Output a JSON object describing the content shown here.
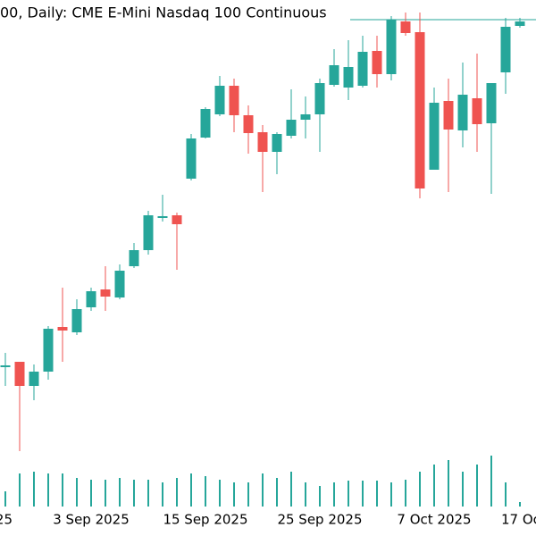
{
  "chart_data": {
    "type": "candlestick",
    "title": "00, Daily:  CME E-Mini Nasdaq 100 Continuous",
    "categories": [
      "25",
      null,
      null,
      null,
      null,
      null,
      "3 Sep 2025",
      null,
      null,
      null,
      null,
      null,
      null,
      null,
      "15 Sep 2025",
      null,
      null,
      null,
      null,
      null,
      null,
      null,
      "25 Sep 2025",
      null,
      null,
      null,
      null,
      null,
      null,
      null,
      "7 Oct 2025",
      null,
      null,
      null,
      null,
      "17 Oc",
      null
    ],
    "open": [
      23450,
      23475,
      23340,
      23420,
      23670,
      23640,
      23780,
      23880,
      23835,
      24010,
      24100,
      24285,
      24295,
      24500,
      24730,
      24860,
      25020,
      24855,
      24760,
      24650,
      24740,
      24830,
      24860,
      25025,
      25010,
      25020,
      25215,
      25085,
      25380,
      25320,
      24550,
      24935,
      24770,
      24950,
      24810,
      25095,
      25355
    ],
    "high": [
      23525,
      23475,
      23460,
      23675,
      23890,
      23825,
      23890,
      24010,
      24020,
      24140,
      24320,
      24410,
      24310,
      24750,
      24900,
      25075,
      25060,
      24910,
      24800,
      24760,
      25000,
      24960,
      25060,
      25225,
      25275,
      25300,
      25300,
      25410,
      25430,
      25430,
      25010,
      25060,
      25150,
      25200,
      25035,
      25400,
      25400
    ],
    "low": [
      23340,
      22975,
      23260,
      23375,
      23475,
      23625,
      23760,
      23760,
      23825,
      24000,
      24075,
      24260,
      23990,
      24490,
      24725,
      24850,
      24760,
      24640,
      24425,
      24525,
      24725,
      24725,
      24650,
      25015,
      24940,
      25010,
      25010,
      25050,
      25300,
      24390,
      24550,
      24425,
      24675,
      24650,
      24415,
      24975,
      25345
    ],
    "close": [
      23455,
      23340,
      23420,
      23660,
      23650,
      23770,
      23870,
      23840,
      23985,
      24100,
      24295,
      24290,
      24245,
      24725,
      24890,
      25020,
      24855,
      24755,
      24650,
      24750,
      24830,
      24860,
      25035,
      25135,
      25125,
      25210,
      25085,
      25390,
      25315,
      24445,
      24925,
      24775,
      24970,
      24805,
      25035,
      25350,
      25380
    ],
    "volume": [
      17,
      37,
      39,
      37,
      37,
      32,
      30,
      30,
      32,
      30,
      30,
      27,
      32,
      37,
      34,
      30,
      27,
      27,
      37,
      32,
      39,
      27,
      23,
      27,
      29,
      29,
      29,
      27,
      30,
      39,
      47,
      52,
      39,
      47,
      57,
      27,
      5
    ],
    "up_color": "#26a69a",
    "down_color": "#ef5350",
    "volume_color": "#26a69a",
    "ylim": [
      22500,
      25500
    ],
    "volume_lim": [
      0,
      100
    ],
    "price_line": 25390,
    "price_line_color": "#26a69a"
  }
}
